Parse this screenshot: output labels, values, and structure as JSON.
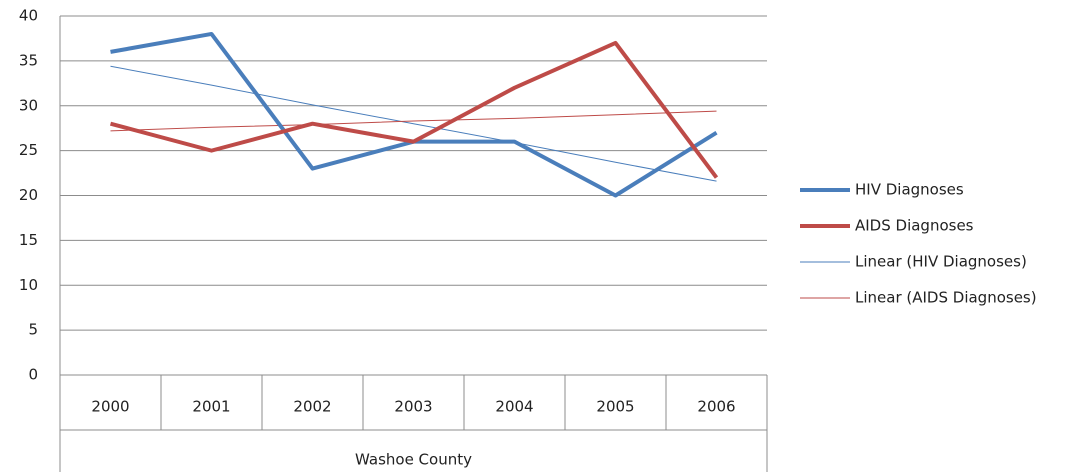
{
  "chart_data": {
    "type": "line",
    "categories": [
      "2000",
      "2001",
      "2002",
      "2003",
      "2004",
      "2005",
      "2006"
    ],
    "group_label": "Washoe County",
    "series": [
      {
        "name": "HIV Diagnoses",
        "color": "#4a7ebb",
        "line_width": 4,
        "values": [
          36,
          38,
          23,
          26,
          26,
          20,
          27
        ]
      },
      {
        "name": "AIDS Diagnoses",
        "color": "#be4b48",
        "line_width": 4,
        "values": [
          28,
          25,
          28,
          26,
          32,
          37,
          22
        ]
      },
      {
        "name": "Linear (HIV Diagnoses)",
        "color": "#4a7ebb",
        "line_width": 1,
        "values": [
          34.4,
          32.3,
          30.1,
          28.0,
          25.9,
          23.7,
          21.6
        ]
      },
      {
        "name": "Linear (AIDS Diagnoses)",
        "color": "#be4b48",
        "line_width": 1,
        "values": [
          27.2,
          27.6,
          27.9,
          28.3,
          28.6,
          29.0,
          29.4
        ]
      }
    ],
    "ylim": [
      0,
      40
    ],
    "yticks": [
      0,
      5,
      10,
      15,
      20,
      25,
      30,
      35,
      40
    ],
    "grid": true,
    "legend": "right"
  }
}
